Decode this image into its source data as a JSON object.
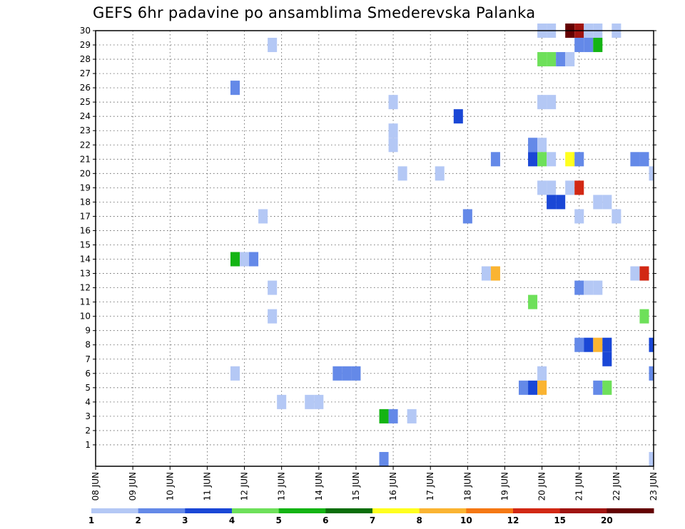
{
  "chart_data": {
    "type": "heatmap",
    "title": "GEFS 6hr padavine po ansamblima Smederevska Palanka",
    "xlabel": "",
    "ylabel": "",
    "x_tick_labels": [
      "08 JUN",
      "09 JUN",
      "10 JUN",
      "11 JUN",
      "12 JUN",
      "13 JUN",
      "14 JUN",
      "15 JUN",
      "16 JUN",
      "17 JUN",
      "18 JUN",
      "19 JUN",
      "20 JUN",
      "21 JUN",
      "22 JUN",
      "23 JUN"
    ],
    "x_range": [
      "08 JUN 00Z",
      "23 JUN 00Z"
    ],
    "y_tick_labels": [
      "1",
      "2",
      "3",
      "4",
      "5",
      "6",
      "7",
      "8",
      "9",
      "10",
      "11",
      "12",
      "13",
      "14",
      "15",
      "16",
      "17",
      "18",
      "19",
      "20",
      "21",
      "22",
      "23",
      "24",
      "25",
      "26",
      "27",
      "28",
      "29",
      "30"
    ],
    "y_range": [
      0,
      30
    ],
    "grid": true,
    "time_step_hours": 6,
    "legend": {
      "placement": "bottom",
      "colors": [
        "#b4c8f5",
        "#6489e8",
        "#1a47d6",
        "#6ee05a",
        "#14b414",
        "#0a6e0a",
        "#ffff1e",
        "#fab432",
        "#f57814",
        "#d22814",
        "#a01410",
        "#640000"
      ],
      "labels": [
        "1",
        "2",
        "3",
        "4",
        "5",
        "6",
        "7",
        "8",
        "10",
        "12",
        "15",
        "20"
      ]
    },
    "cells": [
      {
        "member": 30,
        "date": "20 JUN",
        "hour": 0,
        "value": 1
      },
      {
        "member": 30,
        "date": "20 JUN",
        "hour": 6,
        "value": 1
      },
      {
        "member": 30,
        "date": "20 JUN",
        "hour": 18,
        "value": 20
      },
      {
        "member": 30,
        "date": "21 JUN",
        "hour": 0,
        "value": 15
      },
      {
        "member": 30,
        "date": "21 JUN",
        "hour": 6,
        "value": 1
      },
      {
        "member": 30,
        "date": "21 JUN",
        "hour": 12,
        "value": 1
      },
      {
        "member": 30,
        "date": "22 JUN",
        "hour": 0,
        "value": 1
      },
      {
        "member": 29,
        "date": "12 JUN",
        "hour": 18,
        "value": 1
      },
      {
        "member": 29,
        "date": "21 JUN",
        "hour": 0,
        "value": 2
      },
      {
        "member": 29,
        "date": "21 JUN",
        "hour": 6,
        "value": 2
      },
      {
        "member": 29,
        "date": "21 JUN",
        "hour": 12,
        "value": 5
      },
      {
        "member": 28,
        "date": "20 JUN",
        "hour": 0,
        "value": 4
      },
      {
        "member": 28,
        "date": "20 JUN",
        "hour": 6,
        "value": 4
      },
      {
        "member": 28,
        "date": "20 JUN",
        "hour": 12,
        "value": 2
      },
      {
        "member": 28,
        "date": "20 JUN",
        "hour": 18,
        "value": 1
      },
      {
        "member": 26,
        "date": "11 JUN",
        "hour": 18,
        "value": 2
      },
      {
        "member": 25,
        "date": "16 JUN",
        "hour": 0,
        "value": 1
      },
      {
        "member": 25,
        "date": "20 JUN",
        "hour": 0,
        "value": 1
      },
      {
        "member": 25,
        "date": "20 JUN",
        "hour": 6,
        "value": 1
      },
      {
        "member": 24,
        "date": "17 JUN",
        "hour": 18,
        "value": 3
      },
      {
        "member": 23,
        "date": "16 JUN",
        "hour": 0,
        "value": 1
      },
      {
        "member": 22,
        "date": "16 JUN",
        "hour": 0,
        "value": 1
      },
      {
        "member": 22,
        "date": "19 JUN",
        "hour": 18,
        "value": 2
      },
      {
        "member": 22,
        "date": "20 JUN",
        "hour": 0,
        "value": 1
      },
      {
        "member": 21,
        "date": "18 JUN",
        "hour": 18,
        "value": 2
      },
      {
        "member": 21,
        "date": "19 JUN",
        "hour": 18,
        "value": 3
      },
      {
        "member": 21,
        "date": "20 JUN",
        "hour": 0,
        "value": 4
      },
      {
        "member": 21,
        "date": "20 JUN",
        "hour": 6,
        "value": 1
      },
      {
        "member": 21,
        "date": "20 JUN",
        "hour": 18,
        "value": 7
      },
      {
        "member": 21,
        "date": "21 JUN",
        "hour": 0,
        "value": 2
      },
      {
        "member": 21,
        "date": "22 JUN",
        "hour": 12,
        "value": 2
      },
      {
        "member": 21,
        "date": "22 JUN",
        "hour": 18,
        "value": 2
      },
      {
        "member": 20,
        "date": "16 JUN",
        "hour": 6,
        "value": 1
      },
      {
        "member": 20,
        "date": "17 JUN",
        "hour": 6,
        "value": 1
      },
      {
        "member": 20,
        "date": "23 JUN",
        "hour": 0,
        "value": 1
      },
      {
        "member": 19,
        "date": "20 JUN",
        "hour": 0,
        "value": 1
      },
      {
        "member": 19,
        "date": "20 JUN",
        "hour": 6,
        "value": 1
      },
      {
        "member": 19,
        "date": "20 JUN",
        "hour": 18,
        "value": 1
      },
      {
        "member": 19,
        "date": "21 JUN",
        "hour": 0,
        "value": 12
      },
      {
        "member": 18,
        "date": "20 JUN",
        "hour": 6,
        "value": 3
      },
      {
        "member": 18,
        "date": "20 JUN",
        "hour": 12,
        "value": 3
      },
      {
        "member": 18,
        "date": "21 JUN",
        "hour": 12,
        "value": 1
      },
      {
        "member": 18,
        "date": "21 JUN",
        "hour": 18,
        "value": 1
      },
      {
        "member": 17,
        "date": "12 JUN",
        "hour": 12,
        "value": 1
      },
      {
        "member": 17,
        "date": "18 JUN",
        "hour": 0,
        "value": 2
      },
      {
        "member": 17,
        "date": "21 JUN",
        "hour": 0,
        "value": 1
      },
      {
        "member": 17,
        "date": "22 JUN",
        "hour": 0,
        "value": 1
      },
      {
        "member": 14,
        "date": "11 JUN",
        "hour": 18,
        "value": 5
      },
      {
        "member": 14,
        "date": "12 JUN",
        "hour": 0,
        "value": 1
      },
      {
        "member": 14,
        "date": "12 JUN",
        "hour": 6,
        "value": 2
      },
      {
        "member": 13,
        "date": "18 JUN",
        "hour": 12,
        "value": 1
      },
      {
        "member": 13,
        "date": "18 JUN",
        "hour": 18,
        "value": 8
      },
      {
        "member": 13,
        "date": "22 JUN",
        "hour": 12,
        "value": 1
      },
      {
        "member": 13,
        "date": "22 JUN",
        "hour": 18,
        "value": 12
      },
      {
        "member": 12,
        "date": "12 JUN",
        "hour": 18,
        "value": 1
      },
      {
        "member": 12,
        "date": "21 JUN",
        "hour": 0,
        "value": 2
      },
      {
        "member": 12,
        "date": "21 JUN",
        "hour": 6,
        "value": 1
      },
      {
        "member": 12,
        "date": "21 JUN",
        "hour": 12,
        "value": 1
      },
      {
        "member": 11,
        "date": "19 JUN",
        "hour": 18,
        "value": 4
      },
      {
        "member": 10,
        "date": "12 JUN",
        "hour": 18,
        "value": 1
      },
      {
        "member": 10,
        "date": "22 JUN",
        "hour": 18,
        "value": 4
      },
      {
        "member": 8,
        "date": "21 JUN",
        "hour": 0,
        "value": 2
      },
      {
        "member": 8,
        "date": "21 JUN",
        "hour": 6,
        "value": 3
      },
      {
        "member": 8,
        "date": "21 JUN",
        "hour": 12,
        "value": 8
      },
      {
        "member": 8,
        "date": "21 JUN",
        "hour": 18,
        "value": 3
      },
      {
        "member": 8,
        "date": "23 JUN",
        "hour": 0,
        "value": 3
      },
      {
        "member": 7,
        "date": "21 JUN",
        "hour": 18,
        "value": 3
      },
      {
        "member": 6,
        "date": "11 JUN",
        "hour": 18,
        "value": 1
      },
      {
        "member": 6,
        "date": "14 JUN",
        "hour": 12,
        "value": 2
      },
      {
        "member": 6,
        "date": "14 JUN",
        "hour": 18,
        "value": 2
      },
      {
        "member": 6,
        "date": "15 JUN",
        "hour": 0,
        "value": 2
      },
      {
        "member": 6,
        "date": "20 JUN",
        "hour": 0,
        "value": 1
      },
      {
        "member": 6,
        "date": "23 JUN",
        "hour": 0,
        "value": 2
      },
      {
        "member": 5,
        "date": "19 JUN",
        "hour": 12,
        "value": 2
      },
      {
        "member": 5,
        "date": "19 JUN",
        "hour": 18,
        "value": 3
      },
      {
        "member": 5,
        "date": "20 JUN",
        "hour": 0,
        "value": 8
      },
      {
        "member": 5,
        "date": "21 JUN",
        "hour": 12,
        "value": 2
      },
      {
        "member": 5,
        "date": "21 JUN",
        "hour": 18,
        "value": 4
      },
      {
        "member": 4,
        "date": "13 JUN",
        "hour": 0,
        "value": 1
      },
      {
        "member": 4,
        "date": "13 JUN",
        "hour": 18,
        "value": 1
      },
      {
        "member": 4,
        "date": "14 JUN",
        "hour": 0,
        "value": 1
      },
      {
        "member": 3,
        "date": "15 JUN",
        "hour": 18,
        "value": 5
      },
      {
        "member": 3,
        "date": "16 JUN",
        "hour": 0,
        "value": 2
      },
      {
        "member": 3,
        "date": "16 JUN",
        "hour": 12,
        "value": 1
      },
      {
        "member": 0,
        "date": "15 JUN",
        "hour": 18,
        "value": 2
      },
      {
        "member": 0,
        "date": "23 JUN",
        "hour": 0,
        "value": 1
      }
    ]
  }
}
